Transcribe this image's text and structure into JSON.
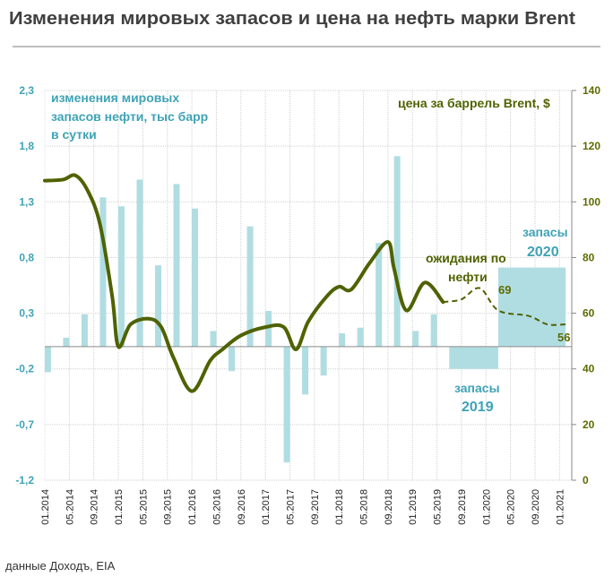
{
  "chart_data": {
    "type": "bar+line",
    "title": "Изменения мировых запасов и цена на нефть марки Brent",
    "source": "данные Доходъ, EIA",
    "colors": {
      "bars": "#b0dde2",
      "line": "#4f6200",
      "left_axis": "#3fa3b5",
      "right_axis": "#5f6b00",
      "title": "#404040"
    },
    "x_range": [
      "2014-01",
      "2021-03"
    ],
    "x_tick_labels": [
      "01.2014",
      "05.2014",
      "09.2014",
      "01.2015",
      "05.2015",
      "09.2015",
      "01.2016",
      "05.2016",
      "09.2016",
      "01.2017",
      "05.2017",
      "09.2017",
      "01.2018",
      "05.2018",
      "09.2018",
      "01.2019",
      "05.2019",
      "09.2019",
      "01.2020",
      "05.2020",
      "09.2020",
      "01.2021"
    ],
    "left_axis": {
      "label": "изменения мировых запасов нефти, тыс барр в сутки",
      "label_lines": [
        "изменения мировых",
        "запасов нефти, тыс барр",
        "в сутки"
      ],
      "ylim": [
        -1.2,
        2.3
      ],
      "ticks": [
        "2,3",
        "1,8",
        "1,3",
        "0,8",
        "0,3",
        "-0,2",
        "-0,7",
        "-1,2"
      ]
    },
    "right_axis": {
      "label": "цена за баррель Brent, $",
      "ylim": [
        0,
        140
      ],
      "ticks": [
        "140",
        "120",
        "100",
        "80",
        "60",
        "40",
        "20",
        "0"
      ]
    },
    "grid": true,
    "bars": {
      "name": "изменения мировых запасов нефти",
      "quarters": [
        "2014Q1",
        "2014Q2",
        "2014Q3",
        "2014Q4",
        "2015Q1",
        "2015Q2",
        "2015Q3",
        "2015Q4",
        "2016Q1",
        "2016Q2",
        "2016Q3",
        "2016Q4",
        "2017Q1",
        "2017Q2",
        "2017Q3",
        "2017Q4",
        "2018Q1",
        "2018Q2",
        "2018Q3",
        "2018Q4",
        "2019Q1",
        "2019Q2",
        "2019Q3"
      ],
      "values": [
        -0.23,
        0.08,
        0.29,
        1.34,
        1.26,
        1.5,
        0.73,
        1.46,
        1.24,
        0.14,
        -0.22,
        1.08,
        0.32,
        -1.04,
        -0.43,
        -0.26,
        0.12,
        0.17,
        0.93,
        1.71,
        0.14,
        0.29,
        -0.13
      ]
    },
    "forecast_blocks": [
      {
        "label_lines": [
          "запасы",
          "2019"
        ],
        "start": "2019-07",
        "end": "2020-03",
        "value": -0.2
      },
      {
        "label_lines": [
          "запасы",
          "2020"
        ],
        "start": "2020-03",
        "end": "2021-02",
        "value": 0.71
      }
    ],
    "price": {
      "name": "цена за баррель Brent, $",
      "actual": [
        [
          "2014-01",
          107.6
        ],
        [
          "2014-04",
          108
        ],
        [
          "2014-06",
          109.5
        ],
        [
          "2014-08",
          104
        ],
        [
          "2014-10",
          92
        ],
        [
          "2014-12",
          66
        ],
        [
          "2015-01",
          48
        ],
        [
          "2015-03",
          56
        ],
        [
          "2015-06",
          58
        ],
        [
          "2015-08",
          55
        ],
        [
          "2015-10",
          44
        ],
        [
          "2016-01",
          32
        ],
        [
          "2016-04",
          43
        ],
        [
          "2016-06",
          47
        ],
        [
          "2016-09",
          52
        ],
        [
          "2017-01",
          55
        ],
        [
          "2017-04",
          55
        ],
        [
          "2017-06",
          47
        ],
        [
          "2017-08",
          57
        ],
        [
          "2017-11",
          66
        ],
        [
          "2018-01",
          69.5
        ],
        [
          "2018-03",
          68.5
        ],
        [
          "2018-06",
          78
        ],
        [
          "2018-09",
          85.6
        ],
        [
          "2018-10",
          76
        ],
        [
          "2018-12",
          61
        ],
        [
          "2019-03",
          71
        ],
        [
          "2019-06",
          64
        ]
      ],
      "forecast": [
        [
          "2019-06",
          64
        ],
        [
          "2019-09",
          65
        ],
        [
          "2019-12",
          69
        ],
        [
          "2020-03",
          61
        ],
        [
          "2020-08",
          59
        ],
        [
          "2020-11",
          56
        ],
        [
          "2021-02",
          56
        ]
      ]
    },
    "annotations": {
      "forecast_label_lines": [
        "ожидания по",
        "нефти"
      ],
      "peak_value": "69",
      "end_value": "56"
    }
  }
}
